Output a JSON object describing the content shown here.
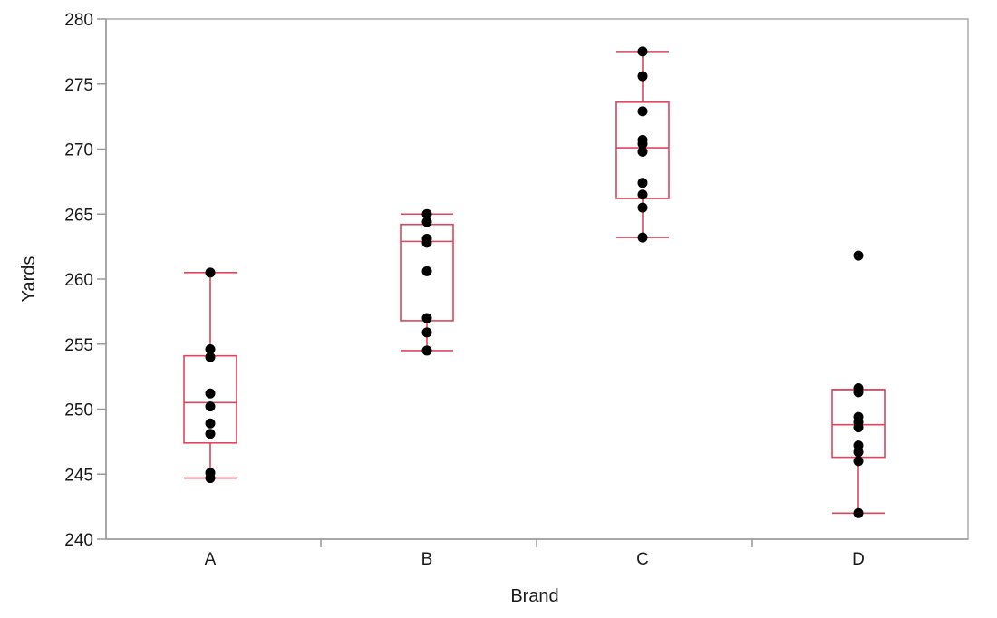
{
  "chart_data": {
    "type": "box",
    "xlabel": "Brand",
    "ylabel": "Yards",
    "ylim": [
      240,
      280
    ],
    "y_ticks": [
      240,
      245,
      250,
      255,
      260,
      265,
      270,
      275,
      280
    ],
    "categories": [
      "A",
      "B",
      "C",
      "D"
    ],
    "grid": false,
    "colors": {
      "box": "#e0455e",
      "point": "#000000",
      "axis": "#999999",
      "frame": "#aaaaaa"
    },
    "boxes": [
      {
        "category": "A",
        "whisker_low": 244.7,
        "q1": 247.4,
        "median": 250.5,
        "q3": 254.1,
        "whisker_high": 260.5
      },
      {
        "category": "B",
        "whisker_low": 254.5,
        "q1": 256.8,
        "median": 262.9,
        "q3": 264.2,
        "whisker_high": 265.0
      },
      {
        "category": "C",
        "whisker_low": 263.2,
        "q1": 266.2,
        "median": 270.1,
        "q3": 273.6,
        "whisker_high": 277.5
      },
      {
        "category": "D",
        "whisker_low": 242.0,
        "q1": 246.3,
        "median": 248.8,
        "q3": 251.5,
        "whisker_high": 251.5
      }
    ],
    "points": [
      {
        "category": "A",
        "values": [
          260.5,
          254.6,
          254.0,
          251.2,
          250.2,
          248.9,
          248.1,
          245.1,
          244.7
        ]
      },
      {
        "category": "B",
        "values": [
          265.0,
          264.4,
          263.1,
          262.8,
          260.6,
          257.0,
          255.9,
          254.5
        ]
      },
      {
        "category": "C",
        "values": [
          277.5,
          275.6,
          272.9,
          270.7,
          270.4,
          269.8,
          267.4,
          266.5,
          265.5,
          263.2
        ]
      },
      {
        "category": "D",
        "values": [
          261.8,
          251.6,
          251.3,
          249.4,
          249.0,
          248.6,
          247.2,
          246.7,
          246.0,
          242.0
        ]
      }
    ]
  }
}
